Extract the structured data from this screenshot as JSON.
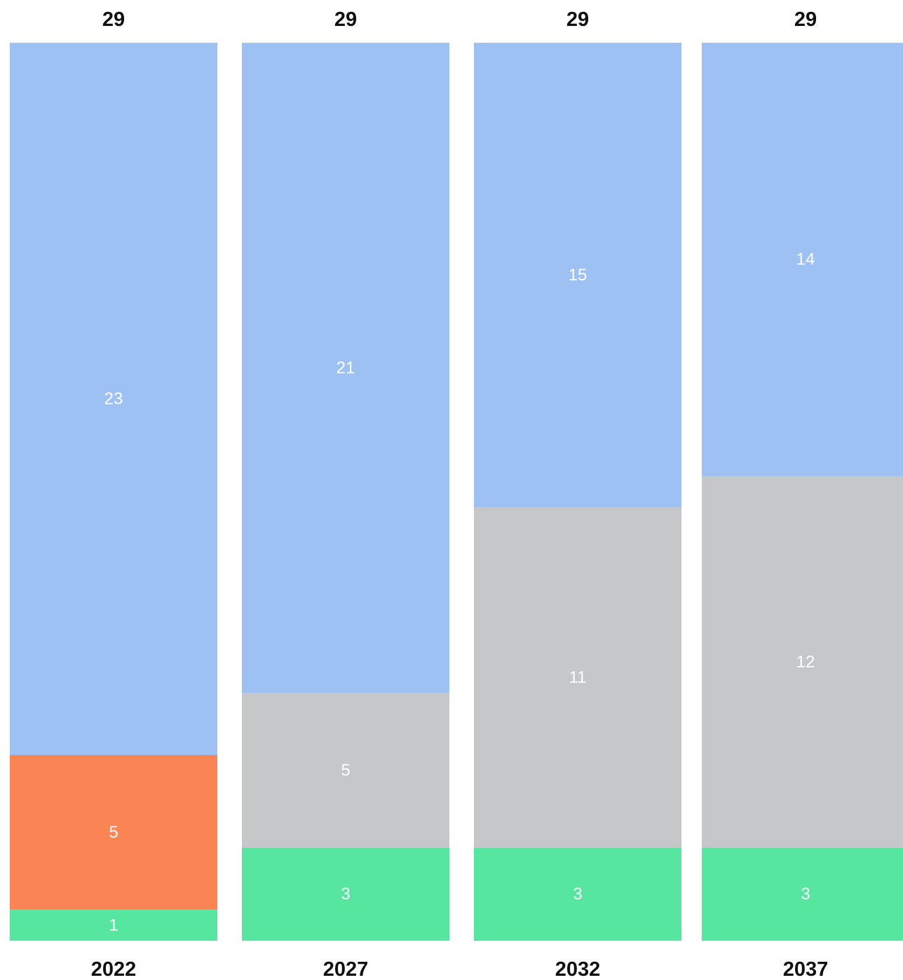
{
  "chart_data": {
    "type": "bar",
    "stacked": true,
    "categories": [
      "2022",
      "2027",
      "2032",
      "2037"
    ],
    "totals": [
      "29",
      "29",
      "29",
      "29"
    ],
    "series": [
      {
        "color": "#57e69f",
        "values": [
          1,
          3,
          3,
          3
        ]
      },
      {
        "color": "#fb8455",
        "values": [
          5,
          0,
          0,
          0
        ]
      },
      {
        "color": "#c6c7c9",
        "values": [
          0,
          5,
          11,
          12
        ]
      },
      {
        "color": "#9dc1f3",
        "values": [
          23,
          21,
          15,
          14
        ]
      }
    ],
    "ylim": [
      0,
      29
    ],
    "grid": false,
    "legend": "none"
  }
}
